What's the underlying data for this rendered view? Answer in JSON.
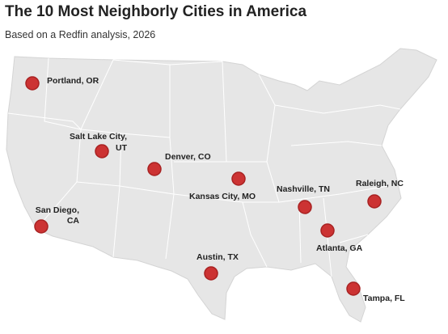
{
  "header": {
    "title": "The 10 Most Neighborly Cities in America",
    "subtitle": "Based on a Redfin analysis, 2026"
  },
  "cities": [
    {
      "label": [
        "Portland, OR"
      ]
    },
    {
      "label": [
        "Salt Lake City,",
        "UT"
      ]
    },
    {
      "label": [
        "Denver, CO"
      ]
    },
    {
      "label": [
        "Kansas City, MO"
      ]
    },
    {
      "label": [
        "Nashville, TN"
      ]
    },
    {
      "label": [
        "Raleigh, NC"
      ]
    },
    {
      "label": [
        "San Diego,",
        "CA"
      ]
    },
    {
      "label": [
        "Atlanta, GA"
      ]
    },
    {
      "label": [
        "Austin, TX"
      ]
    },
    {
      "label": [
        "Tampa, FL"
      ]
    }
  ]
}
